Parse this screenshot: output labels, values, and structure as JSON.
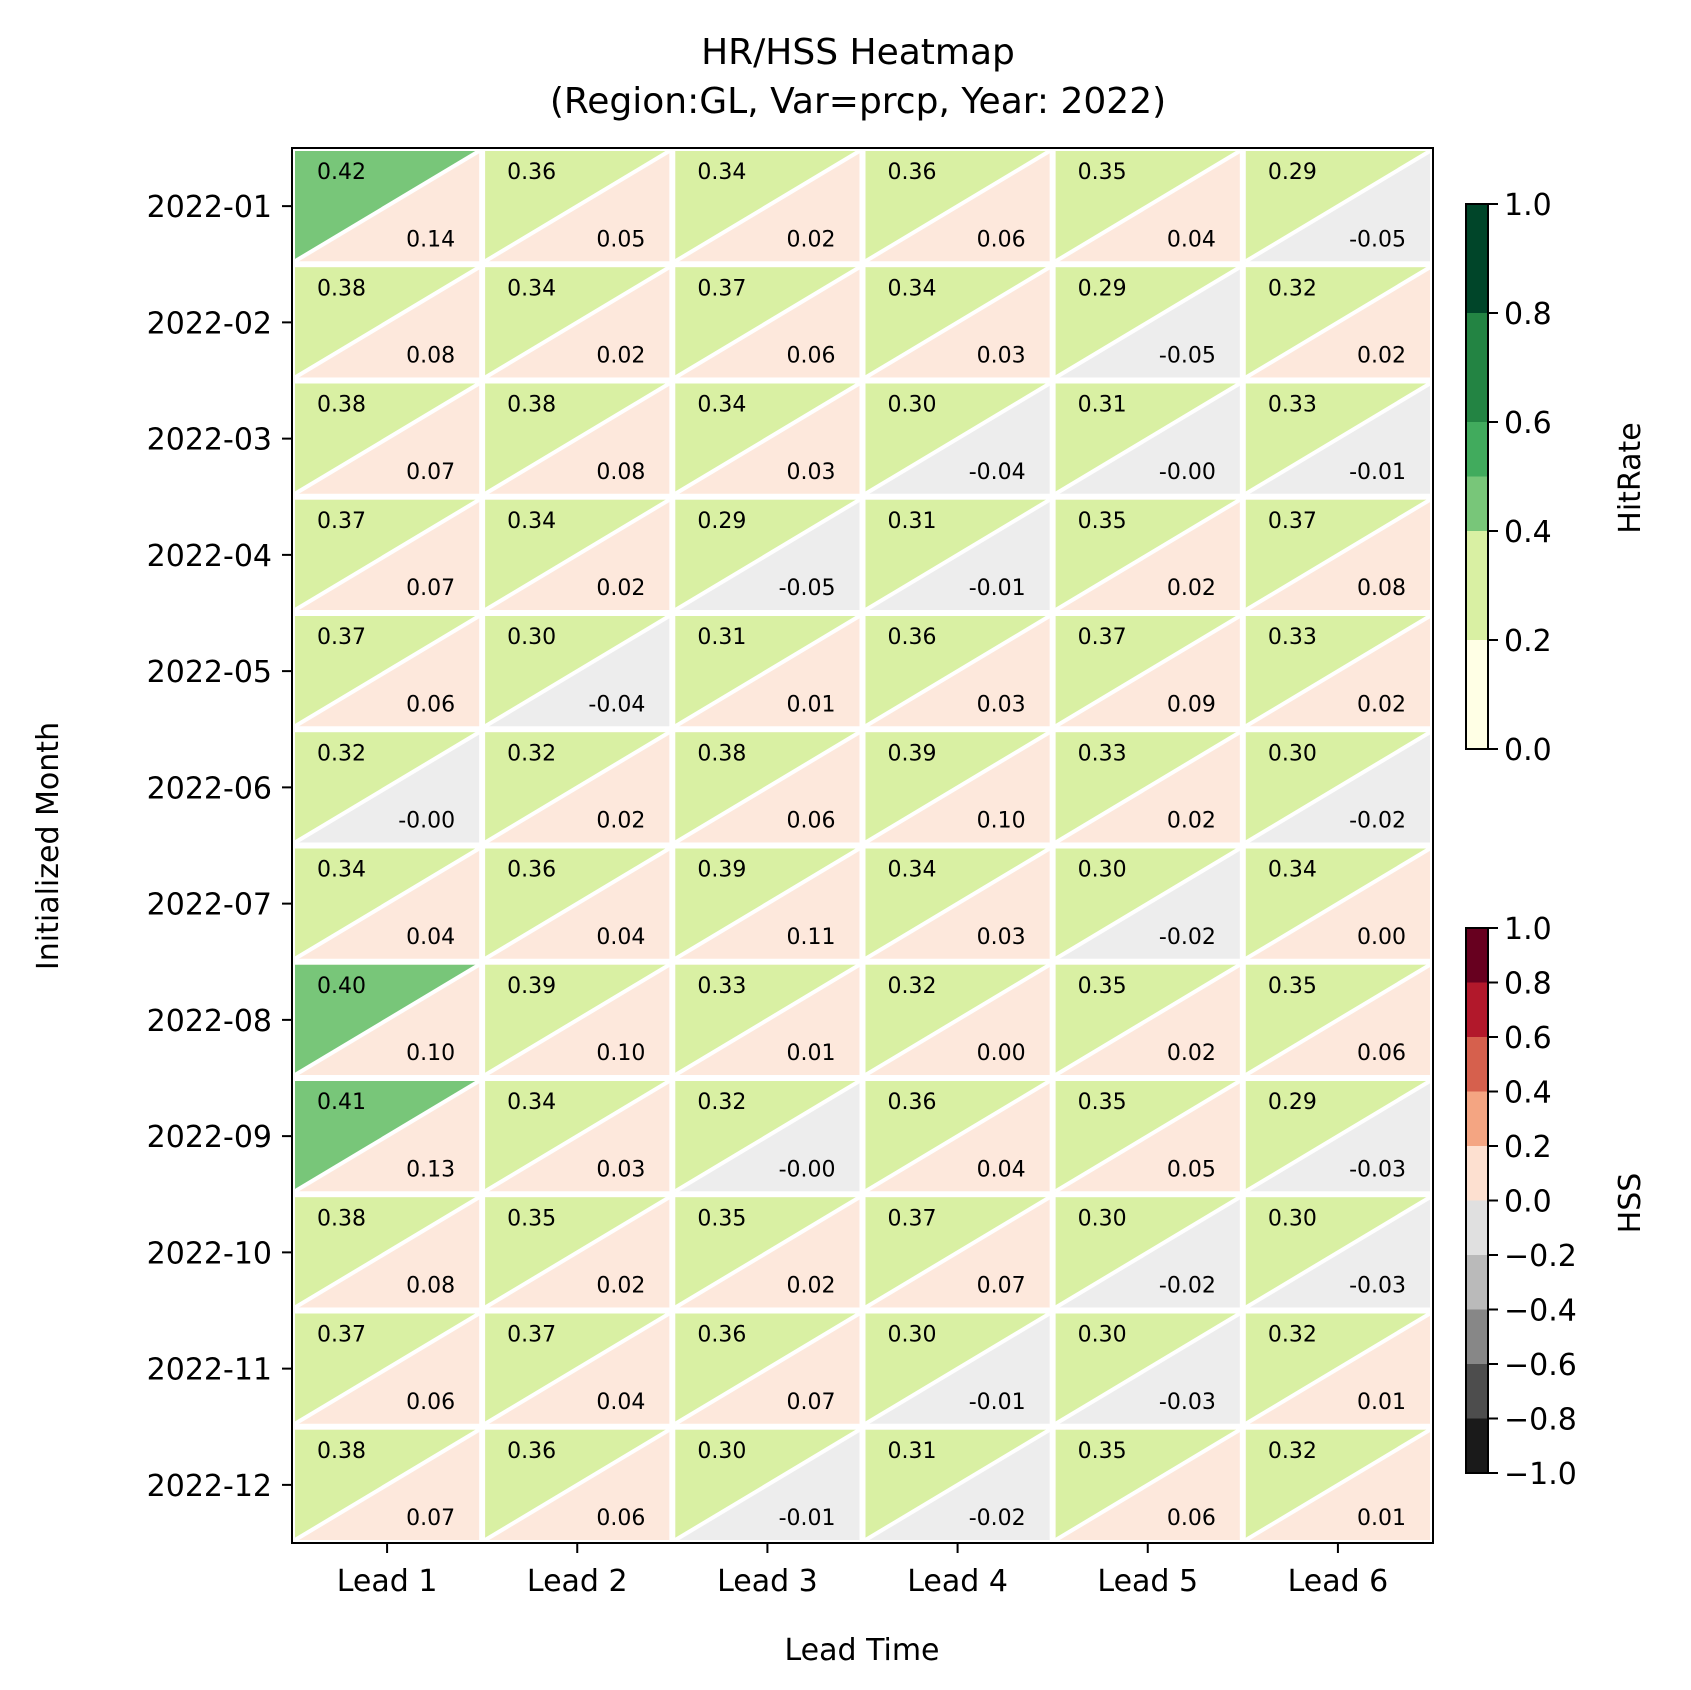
{
  "chart_data": {
    "type": "heatmap",
    "title_line1": "HR/HSS Heatmap",
    "title_line2": "(Region:GL, Var=prcp, Year: 2022)",
    "xlabel": "Lead Time",
    "ylabel": "Initialized Month",
    "x_categories": [
      "Lead 1",
      "Lead 2",
      "Lead 3",
      "Lead 4",
      "Lead 5",
      "Lead 6"
    ],
    "y_categories": [
      "2022-01",
      "2022-02",
      "2022-03",
      "2022-04",
      "2022-05",
      "2022-06",
      "2022-07",
      "2022-08",
      "2022-09",
      "2022-10",
      "2022-11",
      "2022-12"
    ],
    "hitrate": [
      [
        0.42,
        0.36,
        0.34,
        0.36,
        0.35,
        0.29
      ],
      [
        0.38,
        0.34,
        0.37,
        0.34,
        0.29,
        0.32
      ],
      [
        0.38,
        0.38,
        0.34,
        0.3,
        0.31,
        0.33
      ],
      [
        0.37,
        0.34,
        0.29,
        0.31,
        0.35,
        0.37
      ],
      [
        0.37,
        0.3,
        0.31,
        0.36,
        0.37,
        0.33
      ],
      [
        0.32,
        0.32,
        0.38,
        0.39,
        0.33,
        0.3
      ],
      [
        0.34,
        0.36,
        0.39,
        0.34,
        0.3,
        0.34
      ],
      [
        0.4,
        0.39,
        0.33,
        0.32,
        0.35,
        0.35
      ],
      [
        0.41,
        0.34,
        0.32,
        0.36,
        0.35,
        0.29
      ],
      [
        0.38,
        0.35,
        0.35,
        0.37,
        0.3,
        0.3
      ],
      [
        0.37,
        0.37,
        0.36,
        0.3,
        0.3,
        0.32
      ],
      [
        0.38,
        0.36,
        0.3,
        0.31,
        0.35,
        0.32
      ]
    ],
    "hss": [
      [
        "0.14",
        "0.05",
        "0.02",
        "0.06",
        "0.04",
        "-0.05"
      ],
      [
        "0.08",
        "0.02",
        "0.06",
        "0.03",
        "-0.05",
        "0.02"
      ],
      [
        "0.07",
        "0.08",
        "0.03",
        "-0.04",
        "-0.00",
        "-0.01"
      ],
      [
        "0.07",
        "0.02",
        "-0.05",
        "-0.01",
        "0.02",
        "0.08"
      ],
      [
        "0.06",
        "-0.04",
        "0.01",
        "0.03",
        "0.09",
        "0.02"
      ],
      [
        "-0.00",
        "0.02",
        "0.06",
        "0.10",
        "0.02",
        "-0.02"
      ],
      [
        "0.04",
        "0.04",
        "0.11",
        "0.03",
        "-0.02",
        "0.00"
      ],
      [
        "0.10",
        "0.10",
        "0.01",
        "0.00",
        "0.02",
        "0.06"
      ],
      [
        "0.13",
        "0.03",
        "-0.00",
        "0.04",
        "0.05",
        "-0.03"
      ],
      [
        "0.08",
        "0.02",
        "0.02",
        "0.07",
        "-0.02",
        "-0.03"
      ],
      [
        "0.06",
        "0.04",
        "0.07",
        "-0.01",
        "-0.03",
        "0.01"
      ],
      [
        "0.07",
        "0.06",
        "-0.01",
        "-0.02",
        "0.06",
        "0.01"
      ]
    ],
    "hitrate_colorbar": {
      "label": "HitRate",
      "range": [
        0.0,
        1.0
      ],
      "ticks": [
        "0.0",
        "0.2",
        "0.4",
        "0.6",
        "0.8",
        "1.0"
      ],
      "bounds": [
        0.0,
        0.2,
        0.4,
        0.5,
        0.6,
        0.8,
        1.0
      ],
      "colors": [
        "#ffffe5",
        "#d9f0a3",
        "#78c679",
        "#41ab5d",
        "#238443",
        "#004529"
      ]
    },
    "hss_colorbar": {
      "label": "HSS",
      "range": [
        -1.0,
        1.0
      ],
      "ticks": [
        "−1.0",
        "−0.8",
        "−0.6",
        "−0.4",
        "−0.2",
        "0.0",
        "0.2",
        "0.4",
        "0.6",
        "0.8",
        "1.0"
      ],
      "bounds": [
        -1.0,
        -0.8,
        -0.6,
        -0.4,
        -0.2,
        0.0,
        0.2,
        0.4,
        0.6,
        0.8,
        1.0
      ],
      "colors": [
        "#1a1a1a",
        "#4d4d4d",
        "#878787",
        "#bababa",
        "#e0e0e0",
        "#fde0d0",
        "#f4a582",
        "#d6604d",
        "#b2182b",
        "#67001f"
      ],
      "negative_small_color": "#ededed",
      "positive_small_color": "#fde8dc"
    }
  }
}
